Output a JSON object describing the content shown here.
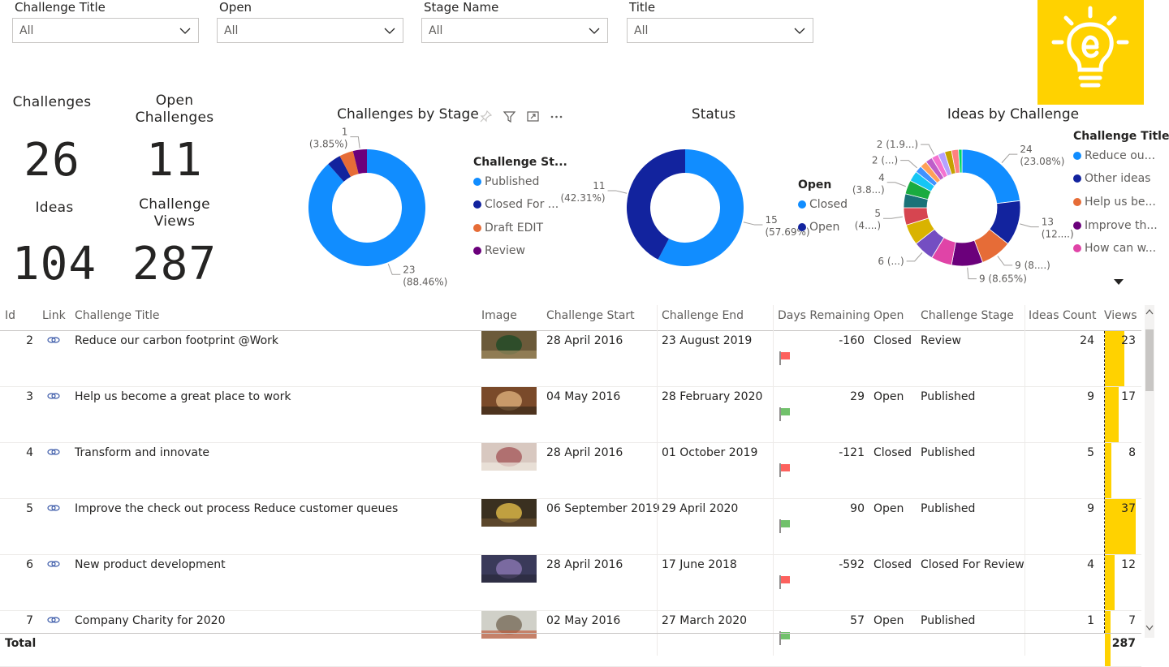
{
  "slicers": [
    {
      "title": "Challenge Title",
      "value": "All"
    },
    {
      "title": "Open",
      "value": "All"
    },
    {
      "title": "Stage Name",
      "value": "All"
    },
    {
      "title": "Title",
      "value": "All"
    }
  ],
  "kpis": {
    "challenges": {
      "label": "Challenges",
      "value": "26"
    },
    "open_challenges": {
      "label": "Open Challenges",
      "value": "11"
    },
    "ideas": {
      "label": "Ideas",
      "value": "104"
    },
    "challenge_views": {
      "label": "Challenge Views",
      "value": "287"
    }
  },
  "chart_data": [
    {
      "type": "pie",
      "title": "Challenges by Stage",
      "legend_title": "Challenge St...",
      "legend_position": "right",
      "slices": [
        {
          "name": "Published",
          "value": 23,
          "label": "23",
          "pct": "(88.46%)",
          "color": "#118dff"
        },
        {
          "name": "Closed For ...",
          "value": 1,
          "label": "",
          "pct": "",
          "color": "#12239e"
        },
        {
          "name": "Draft EDIT",
          "value": 1,
          "label": "",
          "pct": "",
          "color": "#e66c37"
        },
        {
          "name": "Review",
          "value": 1,
          "label": "1",
          "pct": "(3.85%)",
          "color": "#6b007b"
        }
      ]
    },
    {
      "type": "pie",
      "title": "Status",
      "legend_title": "Open",
      "legend_position": "right",
      "slices": [
        {
          "name": "Closed",
          "value": 15,
          "label": "15",
          "pct": "(57.69%)",
          "color": "#118dff"
        },
        {
          "name": "Open",
          "value": 11,
          "label": "11",
          "pct": "(42.31%)",
          "color": "#12239e"
        }
      ]
    },
    {
      "type": "pie",
      "title": "Ideas by Challenge",
      "legend_title": "Challenge Title",
      "legend_position": "right",
      "legend_items": [
        {
          "name": "Reduce ou...",
          "color": "#118dff"
        },
        {
          "name": "Other ideas",
          "color": "#12239e"
        },
        {
          "name": "Help us be...",
          "color": "#e66c37"
        },
        {
          "name": "Improve th...",
          "color": "#6b007b"
        },
        {
          "name": "How can w...",
          "color": "#e044a7"
        }
      ],
      "slices": [
        {
          "value": 24,
          "label": "24",
          "pct": "(23.08%)",
          "color": "#118dff"
        },
        {
          "value": 13,
          "label": "13",
          "pct": "(12....)",
          "color": "#12239e"
        },
        {
          "value": 9,
          "label": "9 (8....)",
          "pct": "",
          "color": "#e66c37"
        },
        {
          "value": 9,
          "label": "9 (8.65%)",
          "pct": "",
          "color": "#6b007b"
        },
        {
          "value": 6,
          "label": "",
          "pct": "",
          "color": "#e044a7"
        },
        {
          "value": 6,
          "label": "6 (...)",
          "pct": "",
          "color": "#744ec2"
        },
        {
          "value": 6,
          "label": "",
          "pct": "",
          "color": "#d9b300"
        },
        {
          "value": 5,
          "label": "5",
          "pct": "(4....)",
          "color": "#d64550"
        },
        {
          "value": 4,
          "label": "",
          "pct": "",
          "color": "#197278"
        },
        {
          "value": 4,
          "label": "4",
          "pct": "(3.8...)",
          "color": "#1aab40"
        },
        {
          "value": 3,
          "label": "",
          "pct": "",
          "color": "#15c6f4"
        },
        {
          "value": 2,
          "label": "2 (...)",
          "pct": "",
          "color": "#4092ff"
        },
        {
          "value": 2,
          "label": "",
          "pct": "",
          "color": "#ffa058"
        },
        {
          "value": 2,
          "label": "",
          "pct": "",
          "color": "#be5dc9"
        },
        {
          "value": 2,
          "label": "2 (1.9...)",
          "pct": "",
          "color": "#f472d0"
        },
        {
          "value": 2,
          "label": "",
          "pct": "",
          "color": "#b5a1ff"
        },
        {
          "value": 2,
          "label": "",
          "pct": "",
          "color": "#c4a200"
        },
        {
          "value": 2,
          "label": "",
          "pct": "",
          "color": "#ff8080"
        },
        {
          "value": 1,
          "label": "",
          "pct": "",
          "color": "#00db63"
        }
      ]
    }
  ],
  "table": {
    "headers": [
      "Id",
      "Link",
      "Challenge Title",
      "Image",
      "Challenge Start",
      "Challenge End",
      "Days Remaining",
      "Open",
      "Challenge Stage",
      "Ideas Count",
      "Views"
    ],
    "rows": [
      {
        "id": "2",
        "title": "Reduce our carbon footprint @Work",
        "start": "28 April 2016",
        "end": "23 August 2019",
        "days": "-160",
        "flag": "red",
        "open": "Closed",
        "stage": "Review",
        "ideas": "24",
        "views": "23",
        "views_num": 23
      },
      {
        "id": "3",
        "title": "Help us become a great place to work",
        "start": "04 May 2016",
        "end": "28 February 2020",
        "days": "29",
        "flag": "green",
        "open": "Open",
        "stage": "Published",
        "ideas": "9",
        "views": "17",
        "views_num": 17
      },
      {
        "id": "4",
        "title": "Transform and innovate",
        "start": "28 April 2016",
        "end": "01 October 2019",
        "days": "-121",
        "flag": "red",
        "open": "Closed",
        "stage": "Published",
        "ideas": "5",
        "views": "8",
        "views_num": 8
      },
      {
        "id": "5",
        "title": "Improve the check out process Reduce customer queues",
        "start": "06 September 2019",
        "end": "29 April 2020",
        "days": "90",
        "flag": "green",
        "open": "Open",
        "stage": "Published",
        "ideas": "9",
        "views": "37",
        "views_num": 37
      },
      {
        "id": "6",
        "title": "New product development",
        "start": "28 April 2016",
        "end": "17 June 2018",
        "days": "-592",
        "flag": "red",
        "open": "Closed",
        "stage": "Closed For Review",
        "ideas": "4",
        "views": "12",
        "views_num": 12
      },
      {
        "id": "7",
        "title": "Company Charity for 2020",
        "start": "02 May 2016",
        "end": "27 March 2020",
        "days": "57",
        "flag": "green",
        "open": "Open",
        "stage": "Published",
        "ideas": "1",
        "views": "7",
        "views_num": 7
      }
    ],
    "total_label": "Total",
    "total_views": "287",
    "views_max": 37
  },
  "colors": {
    "accent": "#ffd200",
    "flag_red": "#fd625e",
    "flag_green": "#71c16b"
  }
}
